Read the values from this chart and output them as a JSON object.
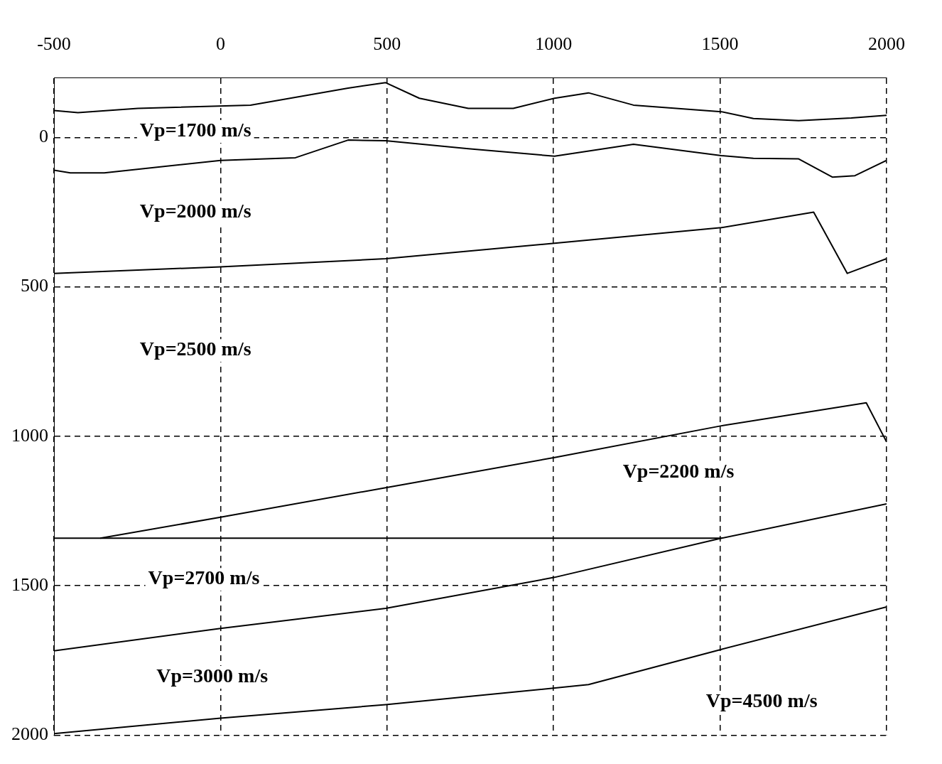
{
  "chart_data": {
    "type": "line",
    "xlim": [
      -500,
      2000
    ],
    "xticks": [
      -500,
      0,
      500,
      1000,
      1500,
      2000
    ],
    "ylim": [
      2000,
      -200
    ],
    "yticks": [
      0,
      500,
      1000,
      1500,
      2000
    ],
    "grid": true,
    "marker": "none",
    "legend": false,
    "series": [
      {
        "color": "#000000",
        "x": [
          -500,
          -428,
          -248,
          90,
          383,
          496,
          597,
          744,
          879,
          1003,
          1105,
          1240,
          1504,
          1600,
          1736,
          1894,
          2000
        ],
        "values": [
          -90,
          -83,
          -97,
          -108,
          -165,
          -183,
          -131,
          -97,
          -97,
          -131,
          -149,
          -108,
          -86,
          -63,
          -56,
          -65,
          -74
        ]
      },
      {
        "color": "#000000",
        "x": [
          -500,
          -451,
          -349,
          0,
          225,
          383,
          496,
          744,
          1003,
          1240,
          1504,
          1600,
          1736,
          1837,
          1905,
          2000
        ],
        "values": [
          110,
          119,
          119,
          77,
          68,
          9,
          11,
          38,
          63,
          23,
          61,
          70,
          72,
          133,
          128,
          77
        ]
      },
      {
        "color": "#000000",
        "x": [
          -500,
          -248,
          0,
          496,
          1003,
          1504,
          1781,
          1882,
          2000
        ],
        "values": [
          455,
          444,
          433,
          406,
          354,
          302,
          250,
          455,
          406
        ]
      },
      {
        "color": "#000000",
        "x": [
          -361,
          0,
          496,
          1003,
          1504,
          1939,
          2000
        ],
        "values": [
          1341,
          1271,
          1172,
          1071,
          965,
          888,
          1019
        ]
      },
      {
        "color": "#000000",
        "x": [
          -500,
          1504
        ],
        "values": [
          1341,
          1341
        ]
      },
      {
        "color": "#000000",
        "x": [
          -500,
          0,
          496,
          1003,
          1504,
          2000
        ],
        "values": [
          1718,
          1643,
          1576,
          1472,
          1341,
          1226
        ]
      },
      {
        "color": "#000000",
        "x": [
          -500,
          0,
          496,
          1105,
          1504,
          2000
        ],
        "values": [
          1995,
          1943,
          1898,
          1831,
          1713,
          1571
        ]
      }
    ],
    "annotations": [
      "Vp=1700 m/s",
      "Vp=2000 m/s",
      "Vp=2500 m/s",
      "Vp=2200 m/s",
      "Vp=2700 m/s",
      "Vp=3000 m/s",
      "Vp=4500 m/s"
    ]
  }
}
